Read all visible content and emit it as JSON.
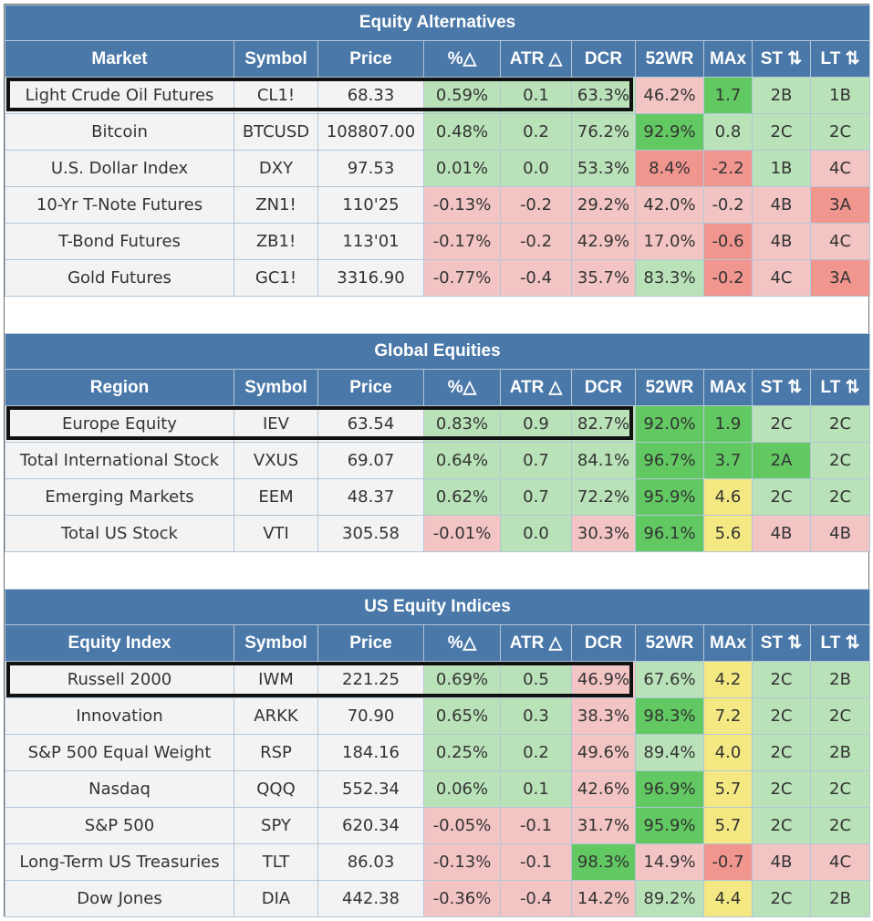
{
  "headers": {
    "symbol": "Symbol",
    "price": "Price",
    "pct": "%△",
    "atr": "ATR △",
    "dcr": "DCR",
    "w52": "52WR",
    "max": "MAx",
    "st": "ST ⇅",
    "lt": "LT ⇅"
  },
  "colors": {
    "header_bg": "#4a78a8",
    "neutral": "#f3f3f3",
    "light_green": "#b9e2b9",
    "strong_green": "#62c962",
    "light_red": "#f3c4c4",
    "strong_red": "#f1958f",
    "yellow": "#f3e882"
  },
  "sections": [
    {
      "title": "Equity Alternatives",
      "first_col": "Market",
      "rows": [
        {
          "name": "Light Crude Oil Futures",
          "symbol": "CL1!",
          "price": "68.33",
          "pct": "0.59%",
          "atr": "0.1",
          "dcr": "63.3%",
          "w52": "46.2%",
          "max": "1.7",
          "st": "2B",
          "lt": "1B",
          "colors": {
            "pct": "g1",
            "atr": "g1",
            "dcr": "g1",
            "w52": "r1",
            "max": "g2",
            "st": "g1",
            "lt": "g1"
          }
        },
        {
          "name": "Bitcoin",
          "symbol": "BTCUSD",
          "price": "108807.00",
          "pct": "0.48%",
          "atr": "0.2",
          "dcr": "76.2%",
          "w52": "92.9%",
          "max": "0.8",
          "st": "2C",
          "lt": "2C",
          "colors": {
            "pct": "g1",
            "atr": "g1",
            "dcr": "g1",
            "w52": "g2",
            "max": "g1",
            "st": "g1",
            "lt": "g1"
          }
        },
        {
          "name": "U.S. Dollar Index",
          "symbol": "DXY",
          "price": "97.53",
          "pct": "0.01%",
          "atr": "0.0",
          "dcr": "53.3%",
          "w52": "8.4%",
          "max": "-2.2",
          "st": "1B",
          "lt": "4C",
          "colors": {
            "pct": "g1",
            "atr": "g1",
            "dcr": "g1",
            "w52": "r2",
            "max": "r2",
            "st": "g1",
            "lt": "r1"
          }
        },
        {
          "name": "10-Yr T-Note Futures",
          "symbol": "ZN1!",
          "price": "110'25",
          "pct": "-0.13%",
          "atr": "-0.2",
          "dcr": "29.2%",
          "w52": "42.0%",
          "max": "-0.2",
          "st": "4B",
          "lt": "3A",
          "colors": {
            "pct": "r1",
            "atr": "r1",
            "dcr": "r1",
            "w52": "r1",
            "max": "r1",
            "st": "r1",
            "lt": "r2"
          }
        },
        {
          "name": "T-Bond Futures",
          "symbol": "ZB1!",
          "price": "113'01",
          "pct": "-0.17%",
          "atr": "-0.2",
          "dcr": "42.9%",
          "w52": "17.0%",
          "max": "-0.6",
          "st": "4B",
          "lt": "4C",
          "colors": {
            "pct": "r1",
            "atr": "r1",
            "dcr": "r1",
            "w52": "r1",
            "max": "r2",
            "st": "r1",
            "lt": "r1"
          }
        },
        {
          "name": "Gold Futures",
          "symbol": "GC1!",
          "price": "3316.90",
          "pct": "-0.77%",
          "atr": "-0.4",
          "dcr": "35.7%",
          "w52": "83.3%",
          "max": "-0.2",
          "st": "4C",
          "lt": "3A",
          "colors": {
            "pct": "r1",
            "atr": "r1",
            "dcr": "r1",
            "w52": "g1",
            "max": "r2",
            "st": "r1",
            "lt": "r2"
          }
        }
      ]
    },
    {
      "title": "Global Equities",
      "first_col": "Region",
      "rows": [
        {
          "name": "Europe Equity",
          "symbol": "IEV",
          "price": "63.54",
          "pct": "0.83%",
          "atr": "0.9",
          "dcr": "82.7%",
          "w52": "92.0%",
          "max": "1.9",
          "st": "2C",
          "lt": "2C",
          "colors": {
            "pct": "g1",
            "atr": "g1",
            "dcr": "g1",
            "w52": "g2",
            "max": "g2",
            "st": "g1",
            "lt": "g1"
          }
        },
        {
          "name": "Total International Stock",
          "symbol": "VXUS",
          "price": "69.07",
          "pct": "0.64%",
          "atr": "0.7",
          "dcr": "84.1%",
          "w52": "96.7%",
          "max": "3.7",
          "st": "2A",
          "lt": "2C",
          "colors": {
            "pct": "g1",
            "atr": "g1",
            "dcr": "g1",
            "w52": "g2",
            "max": "g2",
            "st": "g2",
            "lt": "g1"
          }
        },
        {
          "name": "Emerging Markets",
          "symbol": "EEM",
          "price": "48.37",
          "pct": "0.62%",
          "atr": "0.7",
          "dcr": "72.2%",
          "w52": "95.9%",
          "max": "4.6",
          "st": "2C",
          "lt": "2C",
          "colors": {
            "pct": "g1",
            "atr": "g1",
            "dcr": "g1",
            "w52": "g2",
            "max": "y1",
            "st": "g1",
            "lt": "g1"
          }
        },
        {
          "name": "Total US Stock",
          "symbol": "VTI",
          "price": "305.58",
          "pct": "-0.01%",
          "atr": "0.0",
          "dcr": "30.3%",
          "w52": "96.1%",
          "max": "5.6",
          "st": "4B",
          "lt": "4B",
          "colors": {
            "pct": "r1",
            "atr": "g1",
            "dcr": "r1",
            "w52": "g2",
            "max": "y1",
            "st": "r1",
            "lt": "r1"
          }
        }
      ]
    },
    {
      "title": "US Equity Indices",
      "first_col": "Equity Index",
      "rows": [
        {
          "name": "Russell 2000",
          "symbol": "IWM",
          "price": "221.25",
          "pct": "0.69%",
          "atr": "0.5",
          "dcr": "46.9%",
          "w52": "67.6%",
          "max": "4.2",
          "st": "2C",
          "lt": "2B",
          "colors": {
            "pct": "g1",
            "atr": "g1",
            "dcr": "r1",
            "w52": "g1",
            "max": "y1",
            "st": "g1",
            "lt": "g1"
          }
        },
        {
          "name": "Innovation",
          "symbol": "ARKK",
          "price": "70.90",
          "pct": "0.65%",
          "atr": "0.3",
          "dcr": "38.3%",
          "w52": "98.3%",
          "max": "7.2",
          "st": "2C",
          "lt": "2C",
          "colors": {
            "pct": "g1",
            "atr": "g1",
            "dcr": "r1",
            "w52": "g2",
            "max": "y1",
            "st": "g1",
            "lt": "g1"
          }
        },
        {
          "name": "S&P 500 Equal Weight",
          "symbol": "RSP",
          "price": "184.16",
          "pct": "0.25%",
          "atr": "0.2",
          "dcr": "49.6%",
          "w52": "89.4%",
          "max": "4.0",
          "st": "2C",
          "lt": "2B",
          "colors": {
            "pct": "g1",
            "atr": "g1",
            "dcr": "r1",
            "w52": "g1",
            "max": "y1",
            "st": "g1",
            "lt": "g1"
          }
        },
        {
          "name": "Nasdaq",
          "symbol": "QQQ",
          "price": "552.34",
          "pct": "0.06%",
          "atr": "0.1",
          "dcr": "42.6%",
          "w52": "96.9%",
          "max": "5.7",
          "st": "2C",
          "lt": "2C",
          "colors": {
            "pct": "g1",
            "atr": "g1",
            "dcr": "r1",
            "w52": "g2",
            "max": "y1",
            "st": "g1",
            "lt": "g1"
          }
        },
        {
          "name": "S&P 500",
          "symbol": "SPY",
          "price": "620.34",
          "pct": "-0.05%",
          "atr": "-0.1",
          "dcr": "31.7%",
          "w52": "95.9%",
          "max": "5.7",
          "st": "2C",
          "lt": "2C",
          "colors": {
            "pct": "r1",
            "atr": "r1",
            "dcr": "r1",
            "w52": "g2",
            "max": "y1",
            "st": "g1",
            "lt": "g1"
          }
        },
        {
          "name": "Long-Term US Treasuries",
          "symbol": "TLT",
          "price": "86.03",
          "pct": "-0.13%",
          "atr": "-0.1",
          "dcr": "98.3%",
          "w52": "14.9%",
          "max": "-0.7",
          "st": "4B",
          "lt": "4C",
          "colors": {
            "pct": "r1",
            "atr": "r1",
            "dcr": "g2",
            "w52": "r1",
            "max": "r2",
            "st": "r1",
            "lt": "r1"
          }
        },
        {
          "name": "Dow Jones",
          "symbol": "DIA",
          "price": "442.38",
          "pct": "-0.36%",
          "atr": "-0.4",
          "dcr": "14.2%",
          "w52": "89.2%",
          "max": "4.4",
          "st": "2C",
          "lt": "2B",
          "colors": {
            "pct": "r1",
            "atr": "r1",
            "dcr": "r1",
            "w52": "g1",
            "max": "y1",
            "st": "g1",
            "lt": "g1"
          }
        }
      ]
    }
  ]
}
